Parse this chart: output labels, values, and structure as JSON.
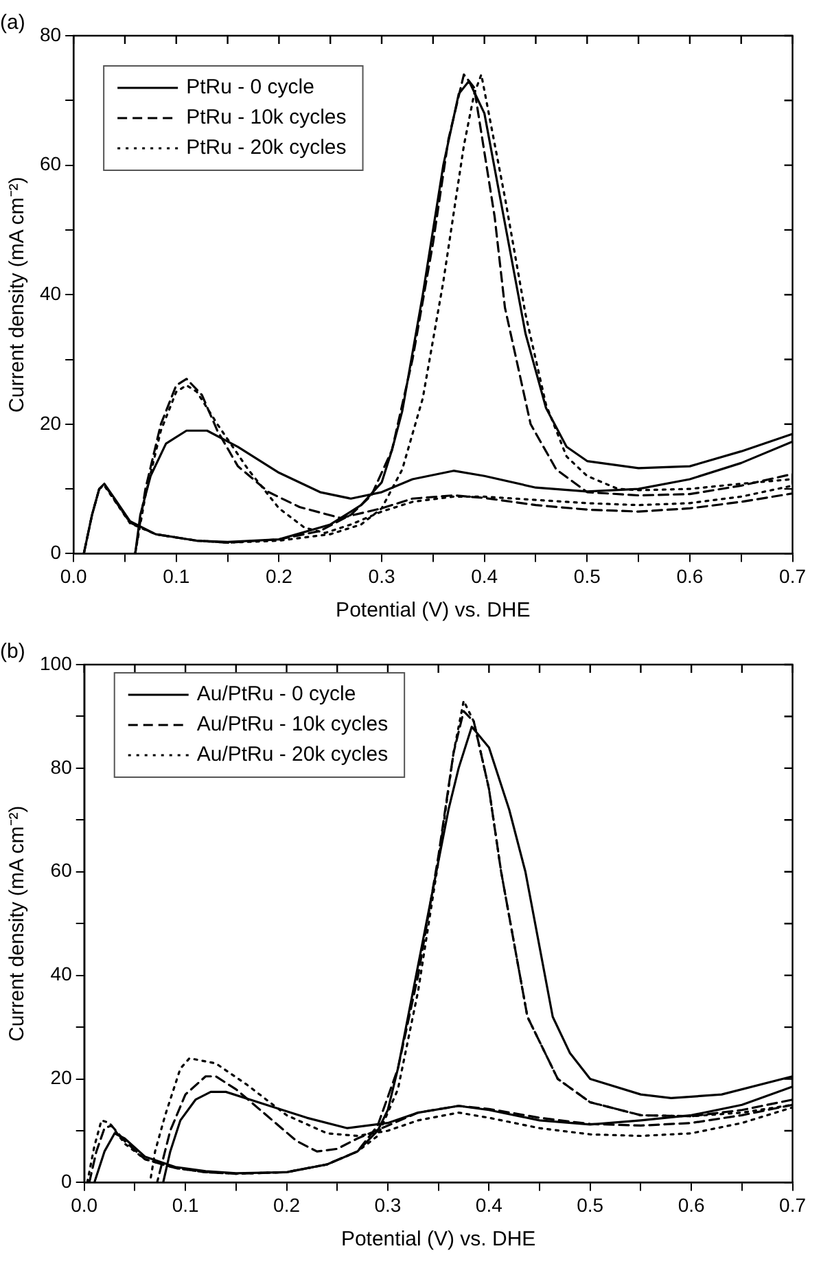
{
  "chart_data": [
    {
      "type": "line",
      "title": "(a)",
      "xlabel": "Potential (V) vs. DHE",
      "ylabel": "Current density (mA cm⁻²)",
      "xlim": [
        0,
        0.7
      ],
      "ylim": [
        0,
        80
      ],
      "xticks": [
        {
          "value": 0,
          "label": "0.0"
        },
        {
          "value": 0.05,
          "label": null
        },
        0.1,
        {
          "value": 0.15,
          "label": null
        },
        0.2,
        {
          "value": 0.25,
          "label": null
        },
        0.3,
        {
          "value": 0.35,
          "label": null
        },
        0.4,
        {
          "value": 0.45,
          "label": null
        },
        0.5,
        {
          "value": 0.55,
          "label": null
        },
        0.6,
        {
          "value": 0.65,
          "label": null
        },
        0.7
      ],
      "yticks": [
        0,
        {
          "value": 10,
          "label": null
        },
        20,
        {
          "value": 30,
          "label": null
        },
        40,
        {
          "value": 50,
          "label": null
        },
        60,
        {
          "value": 70,
          "label": null
        },
        80
      ],
      "grid": false,
      "legend": "top left",
      "marker": "none",
      "series": [
        {
          "name": "PtRu - 0 cycle",
          "color": "#000000",
          "line_style": "solid",
          "x": [
            0.01,
            0.018,
            0.025,
            0.03,
            0.04,
            0.055,
            0.08,
            0.12,
            0.15,
            0.2,
            0.25,
            0.28,
            0.3,
            0.31,
            0.32,
            0.34,
            0.36,
            0.375,
            0.385,
            0.4,
            0.42,
            0.44,
            0.46,
            0.48,
            0.5,
            0.55,
            0.6,
            0.65,
            0.7,
            0.7,
            0.65,
            0.6,
            0.55,
            0.5,
            0.45,
            0.4,
            0.37,
            0.33,
            0.3,
            0.27,
            0.24,
            0.2,
            0.16,
            0.13,
            0.11,
            0.09,
            0.075,
            0.065,
            0.06
          ],
          "values": [
            0,
            6,
            10,
            10.8,
            8.5,
            5,
            3,
            2,
            1.8,
            2.2,
            4.5,
            7.5,
            11,
            16,
            22,
            40,
            60,
            71,
            73,
            68,
            51,
            34,
            22.5,
            16.5,
            14.3,
            13.2,
            13.5,
            15.8,
            18.5,
            17.3,
            14,
            11.5,
            10,
            9.6,
            10.2,
            12,
            12.8,
            11.5,
            9.5,
            8.5,
            9.5,
            12.5,
            16.5,
            19,
            19,
            17,
            12,
            6,
            0
          ]
        },
        {
          "name": "PtRu - 10k cycles",
          "color": "#000000",
          "line_style": "dashed",
          "x": [
            0.01,
            0.018,
            0.025,
            0.03,
            0.04,
            0.055,
            0.08,
            0.12,
            0.15,
            0.2,
            0.24,
            0.27,
            0.29,
            0.31,
            0.33,
            0.35,
            0.365,
            0.38,
            0.39,
            0.41,
            0.42,
            0.445,
            0.47,
            0.5,
            0.55,
            0.6,
            0.65,
            0.7,
            0.7,
            0.65,
            0.6,
            0.55,
            0.5,
            0.45,
            0.4,
            0.37,
            0.33,
            0.3,
            0.26,
            0.22,
            0.19,
            0.16,
            0.14,
            0.125,
            0.11,
            0.1,
            0.085,
            0.07,
            0.06
          ],
          "values": [
            0,
            6,
            10,
            10.7,
            8.3,
            4.8,
            3,
            2,
            1.7,
            2.2,
            3.5,
            6,
            9,
            16,
            30,
            48,
            64,
            74,
            72,
            52,
            38,
            20,
            13,
            9.5,
            9,
            9.2,
            10.5,
            12.3,
            9.3,
            8,
            7,
            6.5,
            6.8,
            7.5,
            8.6,
            9,
            8.5,
            7,
            5.5,
            7.2,
            9.5,
            13.5,
            19,
            24.5,
            27,
            26,
            20,
            10,
            0
          ]
        },
        {
          "name": "PtRu - 20k cycles",
          "color": "#000000",
          "line_style": "dotted",
          "x": [
            0.01,
            0.018,
            0.025,
            0.03,
            0.04,
            0.055,
            0.08,
            0.12,
            0.15,
            0.2,
            0.25,
            0.28,
            0.3,
            0.32,
            0.34,
            0.36,
            0.38,
            0.39,
            0.397,
            0.42,
            0.44,
            0.46,
            0.48,
            0.5,
            0.53,
            0.55,
            0.6,
            0.65,
            0.7,
            0.7,
            0.65,
            0.6,
            0.55,
            0.5,
            0.45,
            0.4,
            0.37,
            0.33,
            0.3,
            0.27,
            0.245,
            0.225,
            0.2,
            0.17,
            0.14,
            0.12,
            0.11,
            0.1,
            0.085,
            0.07,
            0.06
          ],
          "values": [
            0,
            6,
            10,
            10.5,
            8.2,
            4.7,
            3,
            2,
            1.7,
            2,
            3,
            4.5,
            7,
            13,
            24,
            42,
            63,
            71,
            74,
            55,
            37,
            23,
            15,
            12,
            10,
            9.8,
            10,
            10.8,
            11.5,
            10.5,
            8.8,
            7.8,
            7.5,
            7.8,
            8.3,
            8.8,
            8.8,
            8,
            6.5,
            4.5,
            3.2,
            4,
            7,
            13,
            20,
            25,
            26,
            25,
            19,
            9,
            0
          ]
        }
      ]
    },
    {
      "type": "line",
      "title": "(b)",
      "xlabel": "Potential (V) vs. DHE",
      "ylabel": "Current density (mA cm⁻²)",
      "xlim": [
        0,
        0.7
      ],
      "ylim": [
        0,
        100
      ],
      "xticks": [
        {
          "value": 0,
          "label": "0.0"
        },
        {
          "value": 0.05,
          "label": null
        },
        0.1,
        {
          "value": 0.15,
          "label": null
        },
        0.2,
        {
          "value": 0.25,
          "label": null
        },
        0.3,
        {
          "value": 0.35,
          "label": null
        },
        0.4,
        {
          "value": 0.45,
          "label": null
        },
        0.5,
        {
          "value": 0.55,
          "label": null
        },
        0.6,
        {
          "value": 0.65,
          "label": null
        },
        0.7
      ],
      "yticks": [
        0,
        {
          "value": 10,
          "label": null
        },
        20,
        {
          "value": 30,
          "label": null
        },
        40,
        {
          "value": 50,
          "label": null
        },
        60,
        {
          "value": 70,
          "label": null
        },
        80,
        {
          "value": 90,
          "label": null
        },
        100
      ],
      "grid": false,
      "legend": "top left",
      "marker": "none",
      "series": [
        {
          "name": "Au/PtRu - 0 cycle",
          "color": "#000000",
          "line_style": "solid",
          "x": [
            0.01,
            0.02,
            0.03,
            0.04,
            0.06,
            0.09,
            0.12,
            0.15,
            0.2,
            0.24,
            0.27,
            0.29,
            0.3,
            0.31,
            0.32,
            0.34,
            0.36,
            0.37,
            0.383,
            0.4,
            0.42,
            0.436,
            0.463,
            0.48,
            0.5,
            0.55,
            0.58,
            0.63,
            0.7,
            0.7,
            0.65,
            0.6,
            0.55,
            0.5,
            0.45,
            0.4,
            0.37,
            0.33,
            0.3,
            0.26,
            0.22,
            0.18,
            0.14,
            0.125,
            0.11,
            0.095,
            0.085,
            0.078
          ],
          "values": [
            0,
            6,
            9.5,
            8.5,
            5,
            3,
            2.2,
            1.8,
            2,
            3.5,
            6,
            10,
            14,
            22,
            32,
            52,
            72,
            80,
            88,
            84,
            72,
            60,
            32,
            25,
            20,
            17,
            16.3,
            17,
            20.5,
            18.5,
            15,
            13,
            12,
            11.2,
            12,
            14,
            14.8,
            13.5,
            11.5,
            10.5,
            12.5,
            15,
            17.5,
            17.5,
            16,
            12,
            6,
            0
          ]
        },
        {
          "name": "Au/PtRu - 10k cycles",
          "color": "#000000",
          "line_style": "dashed",
          "x": [
            0.005,
            0.012,
            0.02,
            0.027,
            0.04,
            0.06,
            0.09,
            0.12,
            0.15,
            0.2,
            0.24,
            0.27,
            0.29,
            0.31,
            0.33,
            0.35,
            0.365,
            0.375,
            0.385,
            0.4,
            0.412,
            0.438,
            0.468,
            0.5,
            0.55,
            0.6,
            0.65,
            0.7,
            0.7,
            0.65,
            0.6,
            0.55,
            0.5,
            0.45,
            0.4,
            0.37,
            0.33,
            0.3,
            0.27,
            0.25,
            0.23,
            0.21,
            0.18,
            0.15,
            0.13,
            0.12,
            0.1,
            0.085,
            0.072
          ],
          "values": [
            0,
            6,
            10.5,
            11,
            8,
            4.5,
            2.8,
            2,
            1.7,
            2,
            3.5,
            6,
            11,
            22,
            40,
            63,
            83,
            91,
            89,
            76,
            60,
            32,
            20,
            15.5,
            13,
            12.8,
            14,
            16,
            15,
            13,
            11.5,
            11,
            11.3,
            12.5,
            14.2,
            14.8,
            13.5,
            11,
            8.5,
            6.5,
            6,
            8,
            13,
            18,
            20.5,
            20.5,
            17,
            10,
            0
          ]
        },
        {
          "name": "Au/PtRu - 20k cycles",
          "color": "#000000",
          "line_style": "dotted",
          "x": [
            0.003,
            0.01,
            0.017,
            0.025,
            0.04,
            0.06,
            0.09,
            0.12,
            0.15,
            0.2,
            0.24,
            0.27,
            0.29,
            0.31,
            0.33,
            0.35,
            0.365,
            0.375,
            0.385,
            0.4,
            0.412,
            0.438,
            0.468,
            0.5,
            0.55,
            0.6,
            0.65,
            0.7,
            0.7,
            0.65,
            0.6,
            0.55,
            0.5,
            0.45,
            0.4,
            0.37,
            0.33,
            0.3,
            0.27,
            0.24,
            0.2,
            0.16,
            0.13,
            0.104,
            0.095,
            0.08,
            0.07,
            0.065
          ],
          "values": [
            0,
            7,
            12,
            11.5,
            7.5,
            4.5,
            2.8,
            2,
            1.7,
            2,
            3.5,
            6,
            9,
            18,
            37,
            62,
            83,
            93,
            89,
            76,
            60,
            32,
            20,
            15.5,
            13,
            12.8,
            13.5,
            15,
            14.5,
            11.5,
            9.5,
            9,
            9.3,
            10.5,
            12.5,
            13.5,
            12,
            10,
            9,
            9.5,
            13,
            19,
            23,
            24,
            22,
            13,
            6,
            0
          ]
        }
      ]
    }
  ]
}
